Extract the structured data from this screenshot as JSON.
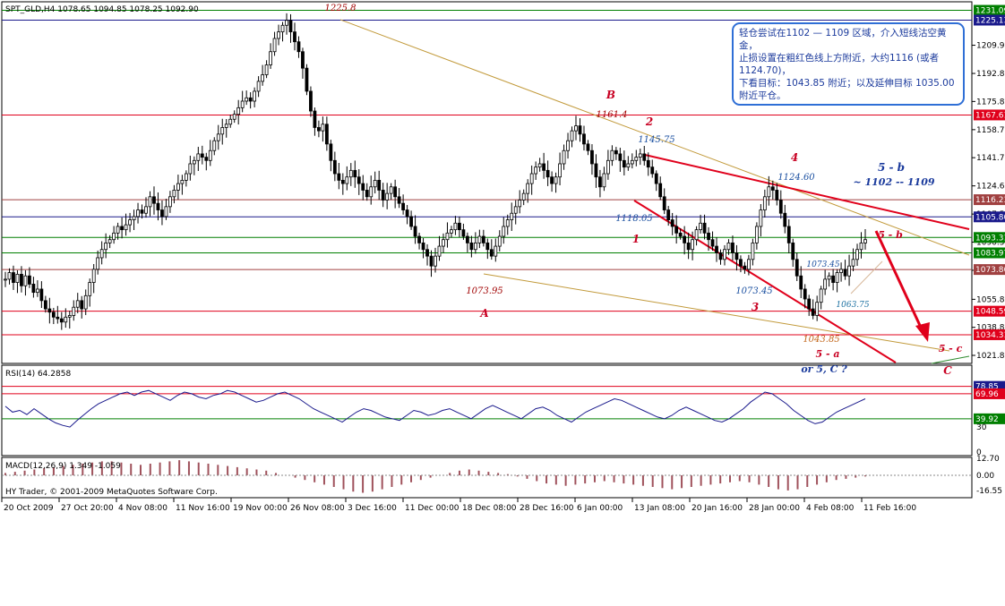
{
  "header": {
    "symbol_info": "SPT_GLD,H4  1078.65 1094.85 1078.25 1092.90",
    "rsi_label": "RSI(14) 64.2858",
    "macd_label": "MACD(12,26,9) 1.349 -1.059",
    "copyright": "HY Trader, © 2001-2009 MetaQuotes Software Corp."
  },
  "note_box": {
    "lines": [
      "轻仓尝试在1102 — 1109 区域，介入短线沽空黄金，",
      "止损设置在粗红色线上方附近，大约1116 (或者1124.70)，",
      "下看目标：1043.85 附近；以及延伸目标 1035.00 附近平仓。"
    ]
  },
  "colors": {
    "candle": "#000000",
    "red_line": "#e0001b",
    "dark_red_line": "#a00000",
    "green_line": "#007f00",
    "blue_line": "#1a1a8c",
    "trend_brown": "#c29a3b",
    "wave_label": "#c80022",
    "macd_hist": "#a0525c",
    "note_border": "#2f6fd6"
  },
  "chart_data": {
    "type": "line",
    "title": "SPT_GLD,H4",
    "price_ticks": [
      "1209.90",
      "1192.80",
      "1175.80",
      "1158.70",
      "1141.70",
      "1124.60",
      "1107.50",
      "1090.50",
      "1073.40",
      "1055.80",
      "1038.80",
      "1021.80"
    ],
    "level_labels": [
      {
        "value": 1231.09,
        "label": "1231.09",
        "color": "#007f00"
      },
      {
        "value": 1225.13,
        "label": "1225.13",
        "color": "#1a1a8c"
      },
      {
        "value": 1167.61,
        "label": "1167.61",
        "color": "#e0001b"
      },
      {
        "value": 1116.23,
        "label": "1116.23",
        "color": "#a04040"
      },
      {
        "value": 1105.8,
        "label": "1105.80",
        "color": "#1a1a8c"
      },
      {
        "value": 1093.31,
        "label": "1093.31",
        "color": "#007f00"
      },
      {
        "value": 1083.97,
        "label": "1083.97",
        "color": "#007f00"
      },
      {
        "value": 1073.86,
        "label": "1073.86",
        "color": "#a04040"
      },
      {
        "value": 1048.59,
        "label": "1048.59",
        "color": "#e0001b"
      },
      {
        "value": 1034.31,
        "label": "1034.31",
        "color": "#e0001b"
      }
    ],
    "x_ticks": [
      "20 Oct 2009",
      "27 Oct 20:00",
      "4 Nov 08:00",
      "11 Nov 16:00",
      "19 Nov 00:00",
      "26 Nov 08:00",
      "3 Dec 16:00",
      "11 Dec 00:00",
      "18 Dec 08:00",
      "28 Dec 16:00",
      "6 Jan 00:00",
      "13 Jan 08:00",
      "20 Jan 16:00",
      "28 Jan 00:00",
      "4 Feb 08:00",
      "11 Feb 16:00"
    ],
    "price_path": [
      1068,
      1072,
      1066,
      1071,
      1064,
      1070,
      1065,
      1060,
      1062,
      1055,
      1050,
      1048,
      1045,
      1044,
      1042,
      1045,
      1046,
      1051,
      1055,
      1050,
      1058,
      1066,
      1074,
      1081,
      1086,
      1090,
      1092,
      1096,
      1100,
      1098,
      1101,
      1104,
      1106,
      1110,
      1108,
      1112,
      1118,
      1114,
      1110,
      1106,
      1112,
      1118,
      1122,
      1126,
      1128,
      1132,
      1138,
      1140,
      1144,
      1142,
      1140,
      1146,
      1152,
      1156,
      1160,
      1162,
      1165,
      1168,
      1172,
      1176,
      1178,
      1176,
      1182,
      1188,
      1192,
      1198,
      1206,
      1214,
      1218,
      1222,
      1225,
      1218,
      1212,
      1206,
      1196,
      1182,
      1170,
      1160,
      1158,
      1162,
      1150,
      1140,
      1132,
      1128,
      1126,
      1130,
      1134,
      1130,
      1126,
      1122,
      1118,
      1124,
      1128,
      1122,
      1116,
      1120,
      1124,
      1118,
      1114,
      1110,
      1106,
      1100,
      1094,
      1090,
      1086,
      1082,
      1076,
      1082,
      1088,
      1092,
      1096,
      1098,
      1102,
      1098,
      1094,
      1090,
      1086,
      1090,
      1094,
      1090,
      1086,
      1082,
      1088,
      1094,
      1100,
      1104,
      1108,
      1112,
      1116,
      1120,
      1126,
      1132,
      1136,
      1138,
      1134,
      1130,
      1126,
      1130,
      1138,
      1146,
      1152,
      1158,
      1161,
      1156,
      1150,
      1146,
      1138,
      1130,
      1124,
      1132,
      1140,
      1146,
      1144,
      1140,
      1136,
      1138,
      1140,
      1142,
      1144,
      1140,
      1136,
      1132,
      1126,
      1118,
      1110,
      1104,
      1100,
      1096,
      1094,
      1090,
      1086,
      1092,
      1098,
      1102,
      1096,
      1092,
      1088,
      1084,
      1080,
      1086,
      1090,
      1084,
      1080,
      1076,
      1074,
      1080,
      1090,
      1100,
      1110,
      1118,
      1124,
      1122,
      1116,
      1108,
      1100,
      1090,
      1080,
      1070,
      1062,
      1056,
      1050,
      1046,
      1054,
      1062,
      1068,
      1070,
      1066,
      1072,
      1074,
      1070,
      1076,
      1080,
      1086,
      1090,
      1092
    ],
    "annotations": [
      {
        "text": "1225.8",
        "color": "#a00000"
      },
      {
        "text": "B",
        "color": "#c80022"
      },
      {
        "text": "1161.4",
        "color": "#a00000"
      },
      {
        "text": "2",
        "color": "#c80022"
      },
      {
        "text": "1145.75",
        "color": "#1a4fa0"
      },
      {
        "text": "4",
        "color": "#c80022"
      },
      {
        "text": "1124.60",
        "color": "#1a4fa0"
      },
      {
        "text": "5 - b",
        "color": "#1a3a9c"
      },
      {
        "text": "~ 1102 -- 1109",
        "color": "#1a3a9c"
      },
      {
        "text": "1118.05",
        "color": "#1a4fa0"
      },
      {
        "text": "1",
        "color": "#c80022"
      },
      {
        "text": "5 - b",
        "color": "#c80022"
      },
      {
        "text": "1073.45",
        "color": "#1a4fa0"
      },
      {
        "text": "1073.95",
        "color": "#a00000"
      },
      {
        "text": "1073.45",
        "color": "#1a4fa0"
      },
      {
        "text": "1063.75",
        "color": "#1a6fa0"
      },
      {
        "text": "3",
        "color": "#c80022"
      },
      {
        "text": "A",
        "color": "#c80022"
      },
      {
        "text": "1043.85",
        "color": "#c2661b"
      },
      {
        "text": "5 - a",
        "color": "#c80022"
      },
      {
        "text": "or 5,  C  ?",
        "color": "#1a3a9c"
      },
      {
        "text": "5 - c",
        "color": "#c80022"
      },
      {
        "text": "C",
        "color": "#c80022"
      }
    ],
    "rsi": {
      "ticks": [
        "78.85",
        "69.96",
        "39.92",
        "30",
        "0"
      ],
      "path": [
        55,
        48,
        50,
        45,
        52,
        46,
        40,
        35,
        32,
        30,
        38,
        45,
        52,
        58,
        62,
        66,
        70,
        72,
        68,
        72,
        74,
        70,
        66,
        62,
        68,
        72,
        70,
        66,
        64,
        68,
        70,
        74,
        72,
        68,
        64,
        60,
        62,
        66,
        70,
        72,
        68,
        64,
        58,
        52,
        48,
        44,
        40,
        36,
        42,
        48,
        52,
        50,
        46,
        42,
        40,
        38,
        44,
        50,
        48,
        44,
        46,
        50,
        52,
        48,
        44,
        40,
        46,
        52,
        56,
        52,
        48,
        44,
        40,
        46,
        52,
        54,
        50,
        44,
        40,
        36,
        42,
        48,
        52,
        56,
        60,
        64,
        62,
        58,
        54,
        50,
        46,
        42,
        40,
        44,
        50,
        54,
        50,
        46,
        42,
        38,
        36,
        40,
        46,
        52,
        60,
        66,
        72,
        70,
        64,
        58,
        50,
        44,
        38,
        34,
        36,
        42,
        48,
        52,
        56,
        60,
        64
      ]
    },
    "macd": {
      "ticks": [
        "12.70",
        "0.00",
        "-16.55"
      ],
      "hist": [
        2,
        3,
        4,
        5,
        6,
        7,
        8,
        9,
        10,
        11,
        12,
        12,
        11,
        10,
        9,
        10,
        11,
        12,
        13,
        12,
        11,
        10,
        9,
        8,
        7,
        6,
        5,
        4,
        2,
        0,
        -2,
        -4,
        -6,
        -8,
        -10,
        -12,
        -14,
        -15,
        -14,
        -12,
        -10,
        -8,
        -6,
        -4,
        -2,
        0,
        2,
        4,
        5,
        4,
        3,
        2,
        1,
        -1,
        -3,
        -5,
        -7,
        -8,
        -9,
        -8,
        -7,
        -6,
        -5,
        -6,
        -7,
        -8,
        -9,
        -10,
        -11,
        -12,
        -11,
        -10,
        -9,
        -8,
        -7,
        -6,
        -5,
        -6,
        -8,
        -10,
        -12,
        -13,
        -12,
        -10,
        -8,
        -6,
        -4,
        -3,
        -2,
        -1
      ]
    }
  }
}
